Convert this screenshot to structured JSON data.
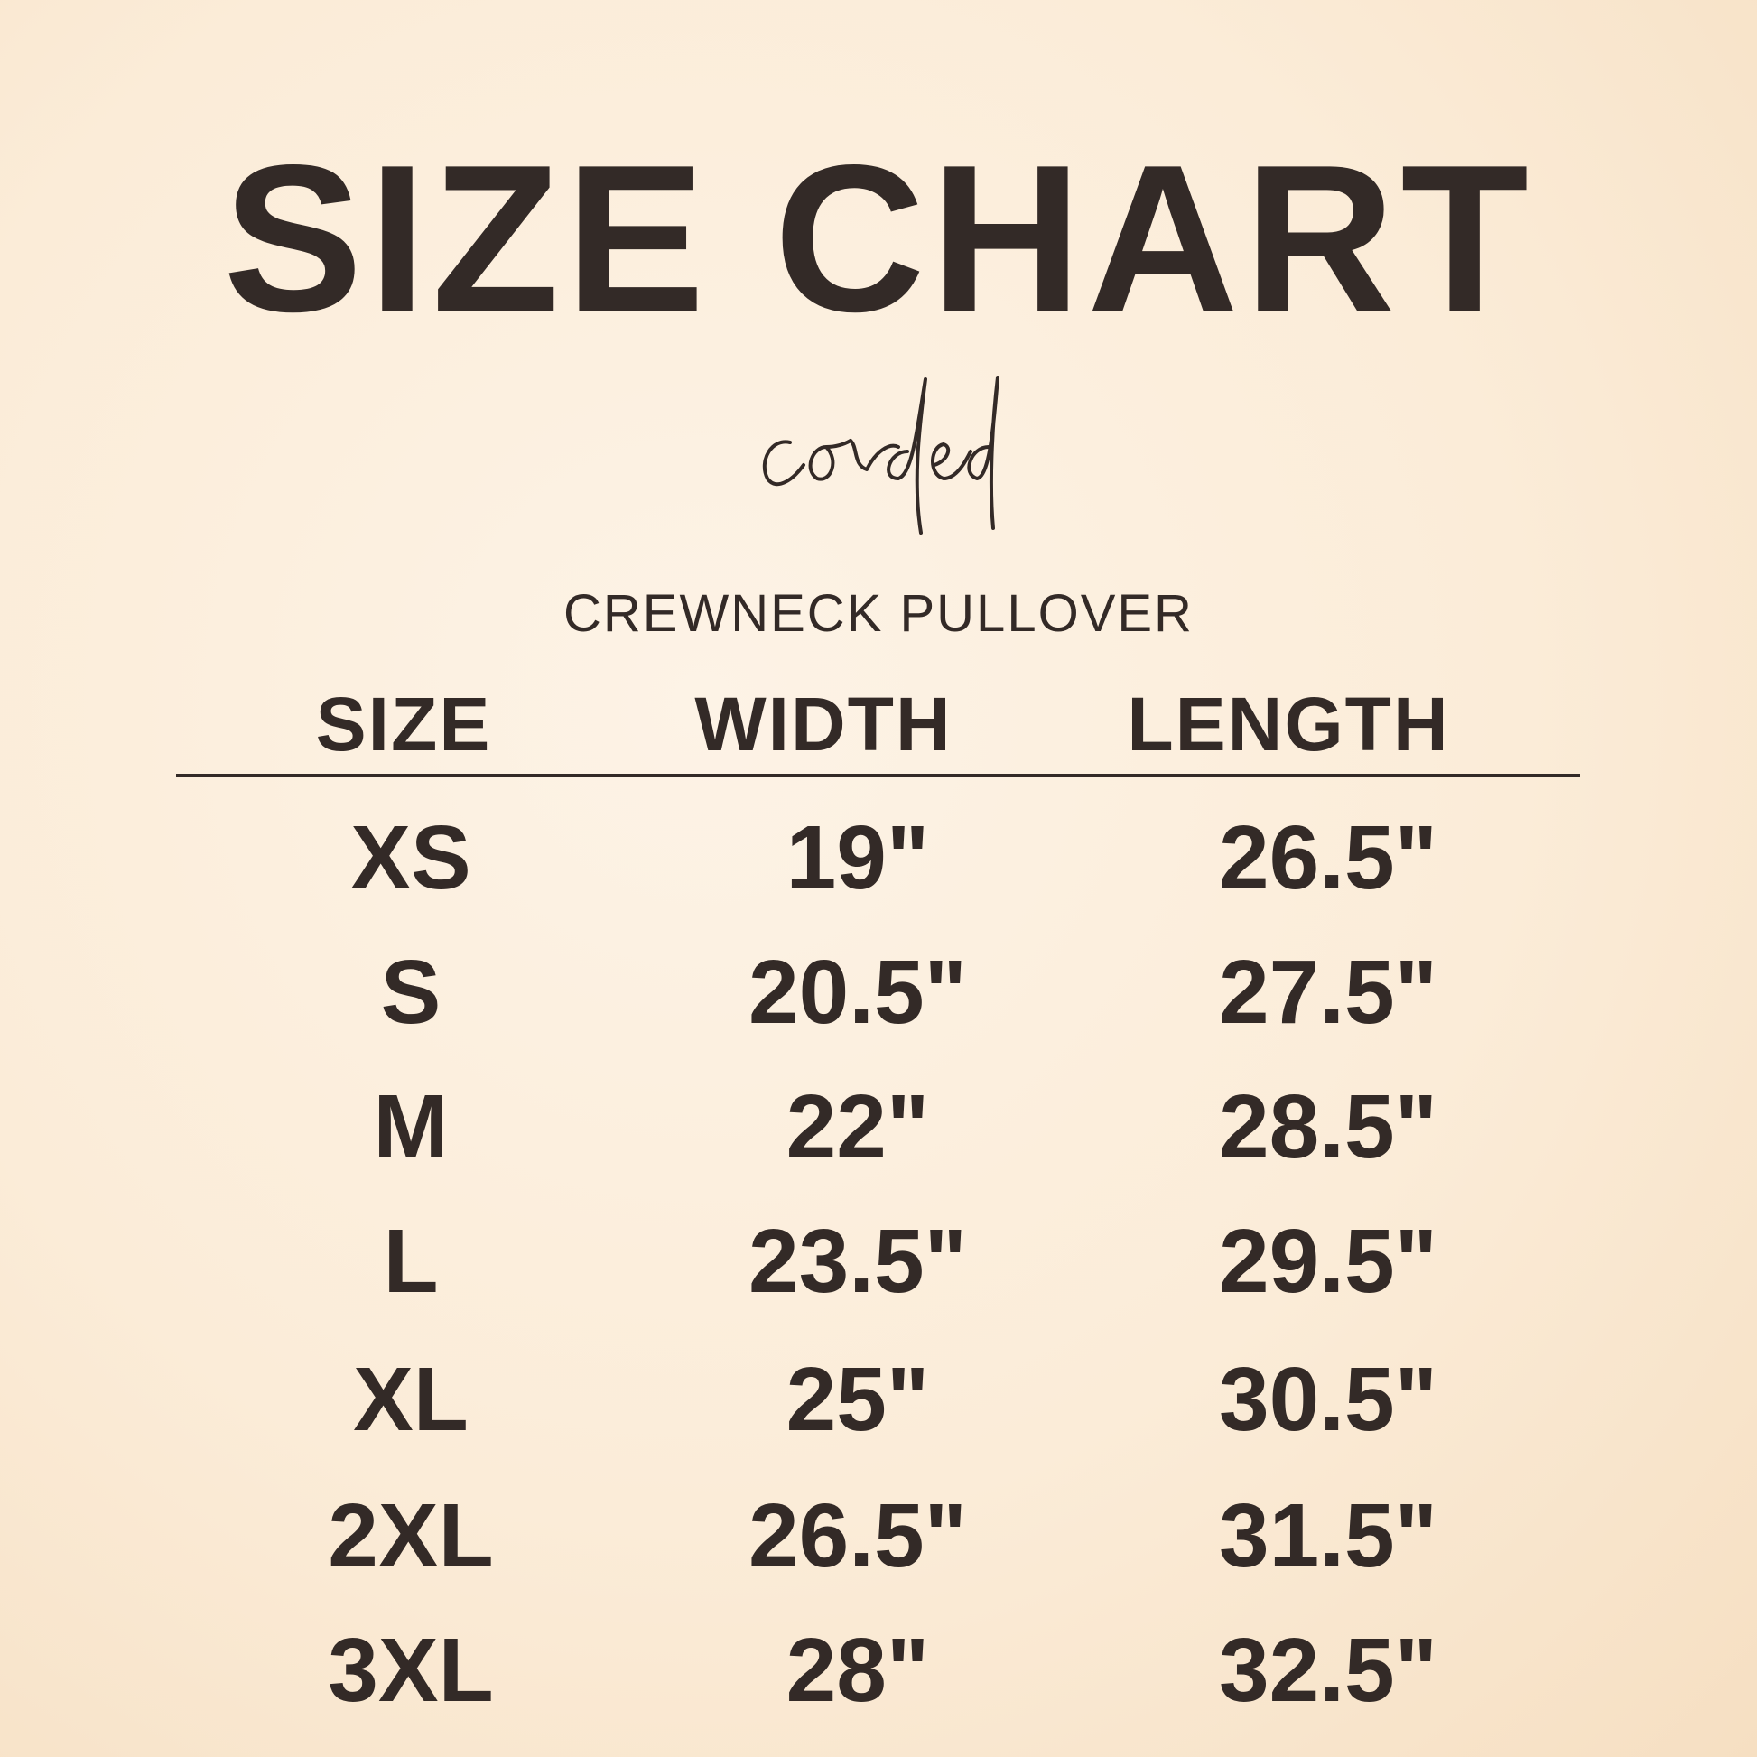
{
  "title": "SIZE CHART",
  "brand_script": "corded",
  "subtitle": "CREWNECK PULLOVER",
  "table": {
    "headers": [
      "SIZE",
      "WIDTH",
      "LENGTH"
    ],
    "rows": [
      [
        "XS",
        "19\"",
        "26.5\""
      ],
      [
        "S",
        "20.5\"",
        "27.5\""
      ],
      [
        "M",
        "22\"",
        "28.5\""
      ],
      [
        "L",
        "23.5\"",
        "29.5\""
      ],
      [
        "XL",
        "25\"",
        "30.5\""
      ],
      [
        "2XL",
        "26.5\"",
        "31.5\""
      ],
      [
        "3XL",
        "28\"",
        "32.5\""
      ]
    ]
  },
  "colors": {
    "text": "#332a27",
    "background": "#fbecd8"
  }
}
